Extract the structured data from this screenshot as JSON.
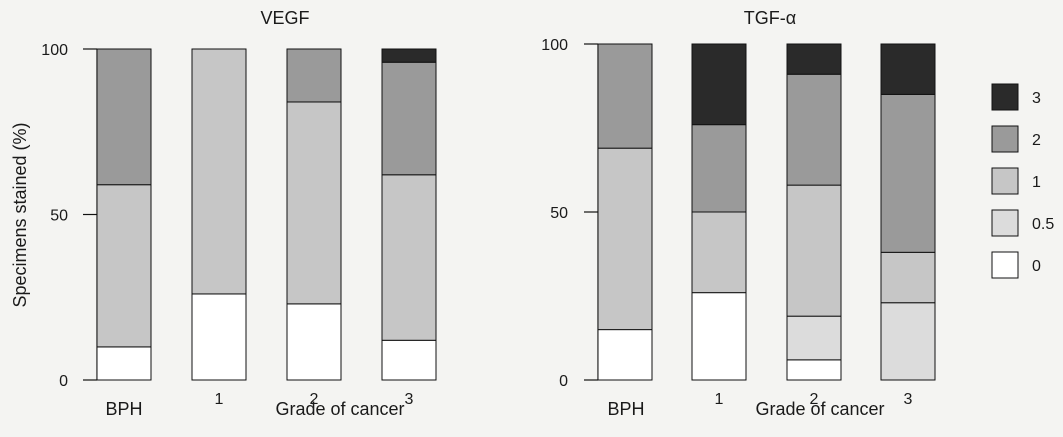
{
  "colors": {
    "background": "#f4f4f2",
    "level_3": "#2a2a2a",
    "level_2": "#9a9a9a",
    "level_1": "#c6c6c6",
    "level_0_5": "#dcdcdc",
    "level_0": "#ffffff",
    "outline": "#111111"
  },
  "ylabel": "Specimens stained (%)",
  "legend": {
    "placement": "right",
    "entries": [
      "3",
      "2",
      "1",
      "0.5",
      "0"
    ]
  },
  "chart_data": [
    {
      "type": "bar",
      "stacked": true,
      "title": "VEGF",
      "ylabel": "Specimens stained (%)",
      "ylim": [
        0,
        100
      ],
      "yticks": [
        "0",
        "50",
        "100"
      ],
      "xlabel": "Grade of cancer",
      "group_label": "BPH",
      "categories": [
        "",
        "1",
        "2",
        "3"
      ],
      "grid": false,
      "series": [
        {
          "name": "0",
          "values": [
            10,
            26,
            23,
            12
          ]
        },
        {
          "name": "0.5",
          "values": [
            0,
            0,
            0,
            0
          ]
        },
        {
          "name": "1",
          "values": [
            49,
            74,
            61,
            50
          ]
        },
        {
          "name": "2",
          "values": [
            41,
            0,
            16,
            34
          ]
        },
        {
          "name": "3",
          "values": [
            0,
            0,
            0,
            4
          ]
        }
      ]
    },
    {
      "type": "bar",
      "stacked": true,
      "title": "TGF-α",
      "ylabel": "",
      "ylim": [
        0,
        100
      ],
      "yticks": [
        "0",
        "50",
        "100"
      ],
      "xlabel": "Grade of cancer",
      "group_label": "BPH",
      "categories": [
        "",
        "1",
        "2",
        "3"
      ],
      "grid": false,
      "series": [
        {
          "name": "0",
          "values": [
            15,
            26,
            6,
            0
          ]
        },
        {
          "name": "0.5",
          "values": [
            0,
            0,
            13,
            23
          ]
        },
        {
          "name": "1",
          "values": [
            54,
            24,
            39,
            15
          ]
        },
        {
          "name": "2",
          "values": [
            31,
            26,
            33,
            47
          ]
        },
        {
          "name": "3",
          "values": [
            0,
            24,
            9,
            15
          ]
        }
      ]
    }
  ]
}
